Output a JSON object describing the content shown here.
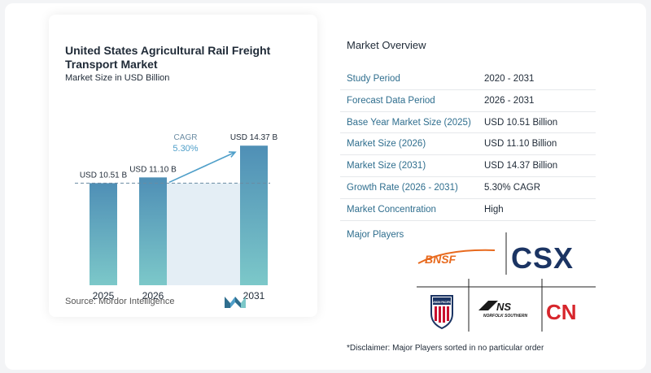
{
  "chart_data": {
    "type": "bar",
    "title": "United States Agricultural Rail Freight Transport Market",
    "subtitle": "Market Size in USD Billion",
    "categories": [
      "2025",
      "2026",
      "2031"
    ],
    "values": [
      10.51,
      11.1,
      14.37
    ],
    "data_labels": [
      "USD 10.51 B",
      "USD 11.10 B",
      "USD 14.37 B"
    ],
    "cagr_label": "CAGR",
    "cagr_value": "5.30%",
    "ylim": [
      0,
      15.5
    ],
    "colors": {
      "bar_top": "#4f8fb6",
      "bar_bottom": "#7cc8c9",
      "band": "#e4eef5",
      "accent": "#4f9fc9"
    }
  },
  "source": "Source: Mordor Intelligence",
  "overview": {
    "title": "Market Overview",
    "rows": [
      {
        "key": "Study Period",
        "value": "2020 - 2031"
      },
      {
        "key": "Forecast Data Period",
        "value": "2026 - 2031"
      },
      {
        "key": "Base Year Market Size (2025)",
        "value": "USD 10.51 Billion"
      },
      {
        "key": "Market Size (2026)",
        "value": "USD 11.10 Billion"
      },
      {
        "key": "Market Size (2031)",
        "value": "USD 14.37 Billion"
      },
      {
        "key": "Growth Rate (2026 - 2031)",
        "value": "5.30% CAGR"
      },
      {
        "key": "Market Concentration",
        "value": "High"
      }
    ]
  },
  "players": {
    "label": "Major Players",
    "logos": [
      "BNSF",
      "CSX",
      "UNION PACIFIC",
      "NS",
      "NORFOLK SOUTHERN",
      "CN"
    ]
  },
  "disclaimer": "*Disclaimer: Major Players sorted in no particular order"
}
